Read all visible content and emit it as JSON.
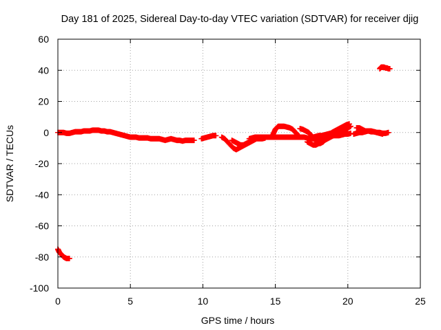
{
  "chart_data": {
    "type": "scatter",
    "title": "Day 181 of 2025, Sidereal Day-to-day VTEC variation (SDTVAR) for receiver djig",
    "xlabel": "GPS time / hours",
    "ylabel": "SDTVAR / TECUs",
    "xlim": [
      0,
      25
    ],
    "ylim": [
      -100,
      60
    ],
    "xticks": [
      0,
      5,
      10,
      15,
      20,
      25
    ],
    "yticks": [
      -100,
      -80,
      -60,
      -40,
      -20,
      0,
      20,
      40,
      60
    ],
    "xtick_labels": [
      "0",
      "5",
      "10",
      "15",
      "20",
      "25"
    ],
    "ytick_labels": [
      "-100",
      "-80",
      "-60",
      "-40",
      "-20",
      "0",
      "20",
      "40",
      "60"
    ],
    "grid": true,
    "marker": "+",
    "series": [
      {
        "name": "SDTVAR",
        "color": "#ff0000",
        "segments": [
          {
            "x": [
              0.0,
              0.05,
              0.1,
              0.2,
              0.3,
              0.4,
              0.5,
              0.6,
              0.7,
              0.8
            ],
            "y": [
              -75,
              -76,
              -77,
              -78,
              -79,
              -80,
              -80.5,
              -81,
              -81,
              -81
            ]
          },
          {
            "x": [
              0.0,
              0.2,
              0.4,
              0.6,
              0.8,
              1.0,
              1.2,
              1.4,
              1.6,
              1.8,
              2.0,
              2.2,
              2.4,
              2.6,
              2.8,
              3.0,
              3.2,
              3.4,
              3.6,
              3.8,
              4.0,
              4.2,
              4.4,
              4.6,
              4.8,
              5.0,
              5.2,
              5.4,
              5.6,
              5.8,
              6.0,
              6.2,
              6.4,
              6.6,
              6.8,
              7.0,
              7.2,
              7.4,
              7.6,
              7.8,
              8.0,
              8.2,
              8.4,
              8.6,
              8.8,
              9.0,
              9.2,
              9.4
            ],
            "y": [
              0,
              0,
              0,
              -0.5,
              -0.5,
              0,
              0.5,
              0.5,
              0.5,
              1,
              1,
              1,
              1.5,
              1.5,
              1.5,
              1,
              1,
              0.5,
              0.5,
              0,
              -0.5,
              -1,
              -1.5,
              -2,
              -2.5,
              -3,
              -3,
              -3,
              -3.5,
              -3.5,
              -3.5,
              -3.5,
              -4,
              -4,
              -4,
              -4,
              -4.5,
              -5,
              -4.5,
              -4,
              -4.5,
              -5,
              -5,
              -5.5,
              -5,
              -5,
              -5,
              -5
            ]
          },
          {
            "x": [
              9.9,
              10.1,
              10.3,
              10.5,
              10.7,
              10.9
            ],
            "y": [
              -4,
              -3.5,
              -3,
              -2.5,
              -2,
              -2
            ]
          },
          {
            "x": [
              11.3,
              11.5,
              11.7,
              11.9,
              12.1,
              12.3,
              12.5,
              12.7,
              12.9,
              13.1,
              13.3,
              13.5,
              13.7,
              13.9,
              14.1,
              14.3
            ],
            "y": [
              -3,
              -4,
              -6,
              -8,
              -10,
              -11,
              -10,
              -9,
              -8,
              -7,
              -6,
              -5,
              -4,
              -4,
              -4,
              -3.5
            ]
          },
          {
            "x": [
              12.0,
              12.2,
              12.4,
              12.6,
              12.8,
              13.0,
              13.2,
              13.4,
              13.6,
              13.8,
              14.0,
              14.2
            ],
            "y": [
              -5,
              -6,
              -7,
              -8,
              -8,
              -7,
              -6,
              -4,
              -3,
              -3,
              -3,
              -3
            ]
          },
          {
            "x": [
              13.2,
              13.4,
              13.6,
              13.8,
              14.0,
              14.2,
              14.4,
              14.6,
              14.8,
              15.0,
              15.2,
              15.4,
              15.6,
              15.8,
              16.0,
              16.2,
              16.4,
              16.6,
              16.8,
              17.0,
              17.2,
              17.4,
              17.6,
              17.8,
              18.0,
              18.2,
              18.4,
              18.6,
              18.8,
              19.0,
              19.2,
              19.4,
              19.6,
              19.8,
              20.0,
              20.2
            ],
            "y": [
              -4,
              -3.5,
              -3,
              -3,
              -3,
              -3,
              -3,
              -3,
              -3,
              -3,
              -3,
              -3,
              -3,
              -3,
              -3,
              -3,
              -3,
              -3,
              -3,
              -3,
              -3.5,
              -4,
              -4,
              -4,
              -4,
              -3.5,
              -3,
              -3,
              -2.5,
              -2,
              -2,
              -2,
              -1.5,
              -1,
              -1,
              -0.5
            ]
          },
          {
            "x": [
              14.8,
              14.9,
              15.0,
              15.1,
              15.2,
              15.4,
              15.6,
              15.8,
              16.0,
              16.2,
              16.4,
              16.5,
              16.6
            ],
            "y": [
              -2,
              0,
              2,
              3,
              4,
              4,
              4,
              3.5,
              3,
              2,
              0,
              -1,
              -3
            ]
          },
          {
            "x": [
              16.7,
              16.9,
              17.1,
              17.3,
              17.5,
              17.7,
              17.9,
              18.1,
              18.3,
              18.5,
              18.7,
              18.9,
              19.1,
              19.3,
              19.5,
              19.7,
              19.9,
              20.1
            ],
            "y": [
              2.5,
              2,
              1,
              0,
              -2,
              -4,
              -7,
              -7,
              -6,
              -4,
              -2,
              0,
              1,
              2,
              3,
              4,
              5,
              5.5
            ]
          },
          {
            "x": [
              17.2,
              17.4,
              17.6,
              17.8,
              18.0,
              18.2,
              18.4,
              18.6,
              18.8,
              19.0,
              19.2,
              19.4,
              19.6,
              19.8,
              20.0,
              20.2
            ],
            "y": [
              -6,
              -7,
              -8,
              -8,
              -7,
              -6,
              -5,
              -4,
              -3,
              -2,
              -1,
              0,
              1,
              2,
              3,
              4
            ]
          },
          {
            "x": [
              17.6,
              17.8,
              18.0,
              18.2,
              18.4,
              18.6,
              18.8,
              19.0,
              19.2,
              19.4,
              19.6,
              19.8,
              20.0
            ],
            "y": [
              -3,
              -2.5,
              -2,
              -2,
              -1.5,
              -1,
              -0.5,
              0,
              0.5,
              1,
              1.5,
              2,
              2.5
            ]
          },
          {
            "x": [
              20.6,
              20.8,
              21.0,
              21.2,
              21.4,
              21.6,
              21.8,
              22.0,
              22.2,
              22.4,
              22.6,
              22.8
            ],
            "y": [
              3,
              3,
              2,
              1,
              1,
              0.5,
              0.5,
              0,
              0,
              -0.5,
              -0.5,
              0
            ]
          },
          {
            "x": [
              20.4,
              20.6,
              20.8,
              21.0,
              21.2,
              21.4,
              21.6,
              21.8,
              22.0,
              22.2,
              22.4
            ],
            "y": [
              -1,
              -0.5,
              0,
              0,
              0.5,
              1,
              1,
              0.5,
              0,
              -0.5,
              -1
            ]
          },
          {
            "x": [
              22.2,
              22.3,
              22.4,
              22.5,
              22.6,
              22.7,
              22.8,
              22.9
            ],
            "y": [
              41,
              42,
              42,
              42,
              41.5,
              41.5,
              41,
              41
            ]
          }
        ]
      }
    ]
  }
}
